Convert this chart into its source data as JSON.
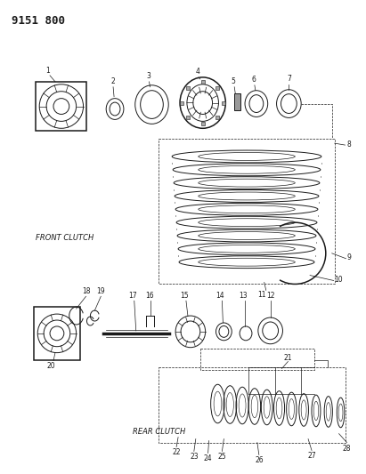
{
  "title": "9151 800",
  "background_color": "#ffffff",
  "text_color": "#1a1a1a",
  "front_clutch_label": "FRONT CLUTCH",
  "rear_clutch_label": "REAR CLUTCH",
  "line_color": "#1a1a1a"
}
